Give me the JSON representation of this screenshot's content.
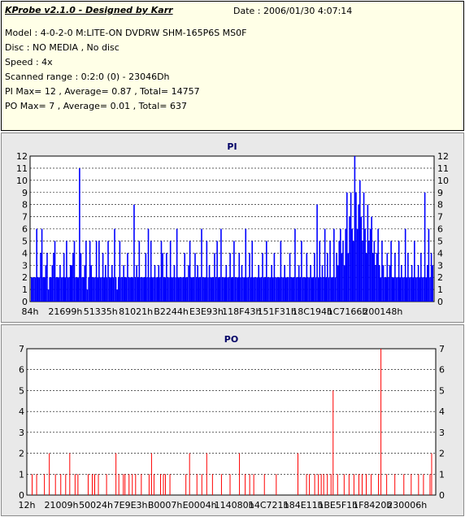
{
  "header": {
    "title": "KProbe v2.1.0 - Designed by Karr",
    "date": "Date : 2006/01/30 4:07:14",
    "lines": [
      "Model : 4-0-2-0 M:LITE-ON DVDRW SHM-165P6S MS0F",
      "Disc : NO MEDIA , No disc",
      "Speed : 4x",
      "Scanned range : 0:2:0 (0) - 23046Dh",
      "PI Max= 12 , Average= 0.87 , Total= 14757",
      "PO Max= 7 , Average= 0.01 , Total= 637"
    ]
  },
  "colors": {
    "background": "#e9e9e9",
    "plot_background": "#ffffff",
    "pi_series": "#0000ff",
    "po_series": "#ff0000",
    "title": "#000066",
    "info_background": "#ffffe7"
  },
  "chart_data": [
    {
      "type": "bar",
      "title": "PI",
      "x_tick_labels": [
        "84h",
        "21699h",
        "51335h",
        "81021h",
        "B2244h",
        "E3E93h",
        "118F43h",
        "151F31h",
        "18C194h",
        "1C7166h",
        "200148h"
      ],
      "ylim": [
        0,
        12
      ],
      "y_ticks": [
        0,
        1,
        2,
        3,
        4,
        5,
        6,
        7,
        8,
        9,
        10,
        11,
        12
      ],
      "grid": true,
      "legend": "none",
      "baseline_range": [
        1,
        2
      ],
      "values": [
        2,
        2,
        2,
        2,
        6,
        2,
        2,
        4,
        6,
        2,
        2,
        3,
        4,
        1,
        2,
        2,
        3,
        4,
        5,
        2,
        2,
        2,
        3,
        2,
        2,
        4,
        2,
        5,
        2,
        2,
        3,
        3,
        4,
        5,
        2,
        2,
        2,
        11,
        4,
        2,
        2,
        3,
        5,
        1,
        2,
        5,
        3,
        2,
        2,
        2,
        5,
        2,
        5,
        2,
        2,
        4,
        2,
        3,
        2,
        5,
        2,
        2,
        3,
        2,
        6,
        2,
        1,
        2,
        5,
        2,
        2,
        3,
        2,
        2,
        4,
        2,
        2,
        2,
        2,
        8,
        2,
        3,
        2,
        5,
        2,
        2,
        2,
        2,
        4,
        2,
        6,
        2,
        5,
        2,
        2,
        3,
        2,
        2,
        3,
        2,
        5,
        4,
        2,
        2,
        4,
        2,
        2,
        5,
        2,
        2,
        3,
        2,
        6,
        2,
        2,
        2,
        2,
        2,
        4,
        2,
        2,
        3,
        5,
        2,
        2,
        2,
        4,
        2,
        3,
        2,
        2,
        6,
        2,
        2,
        2,
        5,
        2,
        3,
        2,
        2,
        2,
        4,
        2,
        5,
        2,
        2,
        6,
        2,
        2,
        2,
        3,
        2,
        2,
        4,
        2,
        2,
        5,
        2,
        2,
        2,
        4,
        2,
        3,
        2,
        2,
        6,
        2,
        2,
        4,
        2,
        5,
        2,
        2,
        2,
        2,
        3,
        2,
        2,
        4,
        2,
        2,
        5,
        2,
        2,
        2,
        3,
        2,
        4,
        2,
        2,
        2,
        2,
        5,
        2,
        2,
        3,
        2,
        2,
        2,
        4,
        2,
        2,
        2,
        6,
        2,
        2,
        3,
        2,
        5,
        2,
        2,
        2,
        4,
        2,
        2,
        3,
        2,
        2,
        4,
        2,
        8,
        2,
        5,
        2,
        3,
        2,
        6,
        2,
        4,
        2,
        5,
        2,
        2,
        6,
        2,
        4,
        3,
        5,
        6,
        4,
        5,
        3,
        6,
        9,
        4,
        7,
        9,
        6,
        5,
        12,
        9,
        6,
        8,
        10,
        7,
        5,
        9,
        6,
        4,
        8,
        5,
        6,
        7,
        4,
        5,
        3,
        4,
        6,
        3,
        2,
        5,
        3,
        2,
        2,
        4,
        2,
        3,
        5,
        2,
        2,
        4,
        2,
        2,
        5,
        2,
        3,
        2,
        2,
        6,
        2,
        4,
        2,
        2,
        3,
        2,
        5,
        2,
        2,
        3,
        2,
        4,
        2,
        2,
        9,
        2,
        3,
        6,
        2,
        4,
        3
      ]
    },
    {
      "type": "bar",
      "title": "PO",
      "x_tick_labels": [
        "12h",
        "21009h",
        "50024h",
        "7E9E3h",
        "B0007h",
        "E0004h",
        "114080h",
        "14C721h",
        "184E11h",
        "1BE5F1h",
        "1F8420h",
        "230006h"
      ],
      "ylim": [
        0,
        7
      ],
      "y_ticks": [
        0,
        1,
        2,
        3,
        4,
        5,
        6,
        7
      ],
      "grid": true,
      "legend": "none",
      "spikes": [
        [
          0.013,
          1
        ],
        [
          0.024,
          1
        ],
        [
          0.043,
          1
        ],
        [
          0.055,
          2
        ],
        [
          0.07,
          1
        ],
        [
          0.083,
          1
        ],
        [
          0.095,
          1
        ],
        [
          0.105,
          2
        ],
        [
          0.118,
          1
        ],
        [
          0.125,
          1
        ],
        [
          0.15,
          1
        ],
        [
          0.16,
          1
        ],
        [
          0.166,
          1
        ],
        [
          0.175,
          1
        ],
        [
          0.195,
          1
        ],
        [
          0.218,
          2
        ],
        [
          0.225,
          1
        ],
        [
          0.236,
          1
        ],
        [
          0.24,
          1
        ],
        [
          0.25,
          1
        ],
        [
          0.258,
          1
        ],
        [
          0.266,
          1
        ],
        [
          0.28,
          1
        ],
        [
          0.299,
          1
        ],
        [
          0.305,
          2
        ],
        [
          0.311,
          1
        ],
        [
          0.327,
          1
        ],
        [
          0.334,
          1
        ],
        [
          0.339,
          1
        ],
        [
          0.35,
          1
        ],
        [
          0.389,
          1
        ],
        [
          0.398,
          2
        ],
        [
          0.416,
          1
        ],
        [
          0.428,
          1
        ],
        [
          0.44,
          2
        ],
        [
          0.454,
          1
        ],
        [
          0.476,
          1
        ],
        [
          0.497,
          1
        ],
        [
          0.52,
          2
        ],
        [
          0.534,
          1
        ],
        [
          0.545,
          1
        ],
        [
          0.555,
          1
        ],
        [
          0.581,
          1
        ],
        [
          0.61,
          1
        ],
        [
          0.663,
          2
        ],
        [
          0.684,
          1
        ],
        [
          0.691,
          1
        ],
        [
          0.704,
          1
        ],
        [
          0.713,
          1
        ],
        [
          0.72,
          1
        ],
        [
          0.726,
          1
        ],
        [
          0.735,
          1
        ],
        [
          0.744,
          1
        ],
        [
          0.749,
          5
        ],
        [
          0.76,
          1
        ],
        [
          0.776,
          1
        ],
        [
          0.788,
          1
        ],
        [
          0.8,
          1
        ],
        [
          0.812,
          1
        ],
        [
          0.82,
          1
        ],
        [
          0.83,
          1
        ],
        [
          0.842,
          1
        ],
        [
          0.86,
          1
        ],
        [
          0.866,
          7
        ],
        [
          0.88,
          1
        ],
        [
          0.9,
          1
        ],
        [
          0.922,
          1
        ],
        [
          0.94,
          1
        ],
        [
          0.958,
          1
        ],
        [
          0.97,
          1
        ],
        [
          0.986,
          1
        ],
        [
          0.99,
          2
        ]
      ]
    }
  ]
}
